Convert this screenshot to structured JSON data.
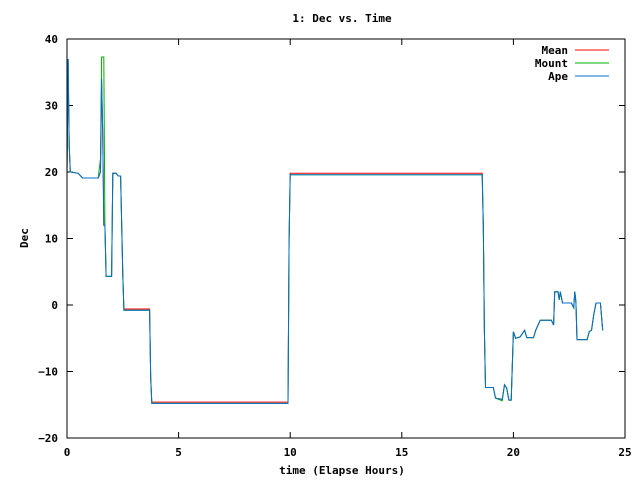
{
  "chart_data": {
    "type": "line",
    "title": "1: Dec vs. Time",
    "xlabel": "time (Elapse Hours)",
    "ylabel": "Dec",
    "xlim": [
      0,
      25
    ],
    "ylim": [
      -20,
      40
    ],
    "xticks": [
      0,
      5,
      10,
      15,
      20,
      25
    ],
    "yticks": [
      -20,
      -10,
      0,
      10,
      20,
      30,
      40
    ],
    "grid": false,
    "legend_position": "top-right",
    "colors": {
      "Mean": "#ff0000",
      "Mount": "#00b000",
      "Ape": "#0070d0"
    },
    "series": [
      {
        "name": "Mean",
        "points": [
          [
            0.0,
            20
          ],
          [
            0.05,
            37
          ],
          [
            0.1,
            24
          ],
          [
            0.15,
            20
          ],
          [
            0.5,
            19.8
          ],
          [
            0.7,
            19.1
          ],
          [
            1.4,
            19.1
          ],
          [
            1.5,
            20
          ],
          [
            1.55,
            34
          ],
          [
            1.6,
            26
          ],
          [
            1.65,
            12
          ],
          [
            1.7,
            12
          ],
          [
            1.75,
            4.3
          ],
          [
            2.0,
            4.3
          ],
          [
            2.05,
            19.8
          ],
          [
            2.2,
            19.8
          ],
          [
            2.3,
            19.4
          ],
          [
            2.4,
            19.4
          ],
          [
            2.45,
            12
          ],
          [
            2.5,
            4.5
          ],
          [
            2.55,
            -0.6
          ],
          [
            3.7,
            -0.6
          ],
          [
            3.75,
            -11
          ],
          [
            3.8,
            -14.6
          ],
          [
            9.9,
            -14.6
          ],
          [
            9.95,
            10
          ],
          [
            10.0,
            19.8
          ],
          [
            18.6,
            19.8
          ],
          [
            18.65,
            12
          ],
          [
            18.7,
            -4
          ],
          [
            18.75,
            -12.4
          ],
          [
            19.1,
            -12.4
          ],
          [
            19.2,
            -14
          ],
          [
            19.5,
            -14.2
          ],
          [
            19.6,
            -12
          ],
          [
            19.7,
            -12.5
          ],
          [
            19.8,
            -14.3
          ],
          [
            19.9,
            -14.3
          ],
          [
            20.0,
            -4
          ],
          [
            20.1,
            -5
          ],
          [
            20.3,
            -4.8
          ],
          [
            20.5,
            -3.8
          ],
          [
            20.6,
            -4.9
          ],
          [
            20.9,
            -4.9
          ],
          [
            21.0,
            -3.8
          ],
          [
            21.2,
            -2.3
          ],
          [
            21.7,
            -2.3
          ],
          [
            21.8,
            -3
          ],
          [
            21.85,
            2
          ],
          [
            22.0,
            2
          ],
          [
            22.05,
            0.8
          ],
          [
            22.1,
            2
          ],
          [
            22.2,
            0.3
          ],
          [
            22.6,
            0.3
          ],
          [
            22.7,
            -0.4
          ],
          [
            22.75,
            2
          ],
          [
            22.8,
            0.5
          ],
          [
            22.85,
            -5.2
          ],
          [
            23.3,
            -5.2
          ],
          [
            23.4,
            -4
          ],
          [
            23.5,
            -3.8
          ],
          [
            23.6,
            -1.4
          ],
          [
            23.7,
            0.3
          ],
          [
            23.9,
            0.3
          ],
          [
            24.0,
            -3.8
          ]
        ]
      },
      {
        "name": "Mount",
        "points": [
          [
            0.0,
            20
          ],
          [
            0.05,
            37
          ],
          [
            0.1,
            24
          ],
          [
            0.15,
            20
          ],
          [
            0.5,
            19.8
          ],
          [
            0.7,
            19.1
          ],
          [
            1.4,
            19.1
          ],
          [
            1.5,
            22
          ],
          [
            1.55,
            37.3
          ],
          [
            1.65,
            37.3
          ],
          [
            1.7,
            12
          ],
          [
            1.75,
            4.3
          ],
          [
            2.0,
            4.3
          ],
          [
            2.05,
            19.8
          ],
          [
            2.2,
            19.8
          ],
          [
            2.3,
            19.4
          ],
          [
            2.4,
            19.4
          ],
          [
            2.45,
            12
          ],
          [
            2.5,
            4.5
          ],
          [
            2.55,
            -0.8
          ],
          [
            3.7,
            -0.8
          ],
          [
            3.75,
            -11
          ],
          [
            3.8,
            -14.8
          ],
          [
            9.9,
            -14.8
          ],
          [
            9.95,
            10
          ],
          [
            10.0,
            19.6
          ],
          [
            18.6,
            19.6
          ],
          [
            18.65,
            12
          ],
          [
            18.7,
            -4
          ],
          [
            18.75,
            -12.4
          ],
          [
            19.1,
            -12.4
          ],
          [
            19.2,
            -14
          ],
          [
            19.5,
            -14.4
          ],
          [
            19.6,
            -12
          ],
          [
            19.7,
            -12.5
          ],
          [
            19.8,
            -14.3
          ],
          [
            19.9,
            -14.3
          ],
          [
            20.0,
            -4
          ],
          [
            20.1,
            -5
          ],
          [
            20.3,
            -4.8
          ],
          [
            20.5,
            -3.8
          ],
          [
            20.6,
            -4.9
          ],
          [
            20.9,
            -4.9
          ],
          [
            21.0,
            -3.8
          ],
          [
            21.2,
            -2.3
          ],
          [
            21.7,
            -2.3
          ],
          [
            21.8,
            -3
          ],
          [
            21.85,
            2
          ],
          [
            22.0,
            2
          ],
          [
            22.05,
            0.8
          ],
          [
            22.1,
            2
          ],
          [
            22.2,
            0.3
          ],
          [
            22.6,
            0.3
          ],
          [
            22.7,
            -0.4
          ],
          [
            22.75,
            2
          ],
          [
            22.8,
            0.5
          ],
          [
            22.85,
            -5.2
          ],
          [
            23.3,
            -5.2
          ],
          [
            23.4,
            -4
          ],
          [
            23.5,
            -3.8
          ],
          [
            23.6,
            -1.4
          ],
          [
            23.7,
            0.3
          ],
          [
            23.9,
            0.3
          ],
          [
            24.0,
            -3.8
          ]
        ]
      },
      {
        "name": "Ape",
        "points": [
          [
            0.0,
            20
          ],
          [
            0.05,
            37
          ],
          [
            0.1,
            24
          ],
          [
            0.15,
            20
          ],
          [
            0.5,
            19.8
          ],
          [
            0.7,
            19.1
          ],
          [
            1.4,
            19.1
          ],
          [
            1.5,
            20
          ],
          [
            1.55,
            34
          ],
          [
            1.6,
            26
          ],
          [
            1.65,
            12
          ],
          [
            1.7,
            12
          ],
          [
            1.75,
            4.3
          ],
          [
            2.0,
            4.3
          ],
          [
            2.05,
            19.8
          ],
          [
            2.2,
            19.8
          ],
          [
            2.3,
            19.4
          ],
          [
            2.4,
            19.4
          ],
          [
            2.45,
            12
          ],
          [
            2.5,
            4.5
          ],
          [
            2.55,
            -0.8
          ],
          [
            3.7,
            -0.8
          ],
          [
            3.75,
            -11
          ],
          [
            3.8,
            -14.8
          ],
          [
            9.9,
            -14.8
          ],
          [
            9.95,
            10
          ],
          [
            10.0,
            19.6
          ],
          [
            18.6,
            19.6
          ],
          [
            18.65,
            12
          ],
          [
            18.7,
            -4
          ],
          [
            18.75,
            -12.4
          ],
          [
            19.1,
            -12.4
          ],
          [
            19.2,
            -14
          ],
          [
            19.5,
            -14.2
          ],
          [
            19.6,
            -12
          ],
          [
            19.7,
            -12.5
          ],
          [
            19.8,
            -14.3
          ],
          [
            19.9,
            -14.3
          ],
          [
            20.0,
            -4
          ],
          [
            20.1,
            -5
          ],
          [
            20.3,
            -4.8
          ],
          [
            20.5,
            -3.8
          ],
          [
            20.6,
            -4.9
          ],
          [
            20.9,
            -4.9
          ],
          [
            21.0,
            -3.8
          ],
          [
            21.2,
            -2.3
          ],
          [
            21.7,
            -2.3
          ],
          [
            21.8,
            -3
          ],
          [
            21.85,
            2
          ],
          [
            22.0,
            2
          ],
          [
            22.05,
            0.8
          ],
          [
            22.1,
            2
          ],
          [
            22.2,
            0.3
          ],
          [
            22.6,
            0.3
          ],
          [
            22.7,
            -0.4
          ],
          [
            22.75,
            2
          ],
          [
            22.8,
            0.5
          ],
          [
            22.85,
            -5.2
          ],
          [
            23.3,
            -5.2
          ],
          [
            23.4,
            -4
          ],
          [
            23.5,
            -3.8
          ],
          [
            23.6,
            -1.4
          ],
          [
            23.7,
            0.3
          ],
          [
            23.9,
            0.3
          ],
          [
            24.0,
            -3.8
          ]
        ]
      }
    ]
  }
}
